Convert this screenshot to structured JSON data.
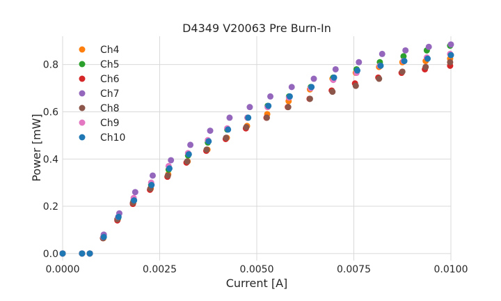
{
  "chart_data": {
    "type": "scatter",
    "title": "D4349 V20063 Pre Burn-In",
    "xlabel": "Current [A]",
    "ylabel": "Power [mW]",
    "xlim": [
      0.0,
      0.01
    ],
    "ylim": [
      -0.03,
      0.92
    ],
    "x_ticks": [
      0.0,
      0.0025,
      0.005,
      0.0075,
      0.01
    ],
    "x_tick_labels": [
      "0.0000",
      "0.0025",
      "0.0050",
      "0.0075",
      "0.0100"
    ],
    "y_ticks": [
      0.0,
      0.2,
      0.4,
      0.6,
      0.8
    ],
    "y_tick_labels": [
      "0.0",
      "0.2",
      "0.4",
      "0.6",
      "0.8"
    ],
    "grid": true,
    "legend_position": "top-left",
    "series": [
      {
        "name": "Ch4",
        "color": "#ff7f0e",
        "x": [
          0.0,
          0.0005,
          0.0007,
          0.00105,
          0.00142,
          0.00182,
          0.00227,
          0.00272,
          0.00322,
          0.00373,
          0.00423,
          0.00475,
          0.00527,
          0.00582,
          0.00637,
          0.00695,
          0.00755,
          0.00815,
          0.00875,
          0.00935,
          0.00998
        ],
        "y": [
          0.0,
          0.0,
          0.0,
          0.065,
          0.145,
          0.215,
          0.275,
          0.335,
          0.39,
          0.44,
          0.49,
          0.54,
          0.59,
          0.645,
          0.695,
          0.74,
          0.765,
          0.79,
          0.81,
          0.815,
          0.825
        ]
      },
      {
        "name": "Ch5",
        "color": "#2ca02c",
        "x": [
          0.0,
          0.0005,
          0.0007,
          0.00105,
          0.00143,
          0.00183,
          0.00228,
          0.00273,
          0.00323,
          0.00374,
          0.00424,
          0.00476,
          0.00528,
          0.00583,
          0.00639,
          0.00697,
          0.00757,
          0.00817,
          0.00878,
          0.00938,
          0.00998
        ],
        "y": [
          0.0,
          0.0,
          0.0,
          0.07,
          0.15,
          0.225,
          0.29,
          0.355,
          0.415,
          0.47,
          0.525,
          0.575,
          0.625,
          0.665,
          0.705,
          0.745,
          0.78,
          0.81,
          0.835,
          0.86,
          0.88
        ]
      },
      {
        "name": "Ch6",
        "color": "#d62728",
        "x": [
          0.0,
          0.0005,
          0.0007,
          0.00104,
          0.00141,
          0.00181,
          0.00225,
          0.0027,
          0.00319,
          0.0037,
          0.0042,
          0.00472,
          0.00525,
          0.0058,
          0.00636,
          0.00693,
          0.00753,
          0.00813,
          0.00873,
          0.00933,
          0.00998
        ],
        "y": [
          0.0,
          0.0,
          0.0,
          0.065,
          0.14,
          0.21,
          0.27,
          0.325,
          0.385,
          0.435,
          0.485,
          0.53,
          0.575,
          0.62,
          0.655,
          0.69,
          0.72,
          0.745,
          0.765,
          0.78,
          0.795
        ]
      },
      {
        "name": "Ch7",
        "color": "#9467bd",
        "x": [
          0.0,
          0.0005,
          0.0007,
          0.00106,
          0.00146,
          0.00187,
          0.00232,
          0.00279,
          0.00329,
          0.0038,
          0.0043,
          0.00482,
          0.00535,
          0.0059,
          0.00647,
          0.00703,
          0.00763,
          0.00823,
          0.00883,
          0.00943,
          0.01
        ],
        "y": [
          0.0,
          0.0,
          0.0,
          0.08,
          0.17,
          0.26,
          0.33,
          0.395,
          0.46,
          0.52,
          0.575,
          0.62,
          0.665,
          0.705,
          0.74,
          0.78,
          0.81,
          0.845,
          0.86,
          0.875,
          0.885
        ]
      },
      {
        "name": "Ch8",
        "color": "#8c564b",
        "x": [
          0.0,
          0.0005,
          0.0007,
          0.00104,
          0.00141,
          0.00181,
          0.00226,
          0.00271,
          0.00321,
          0.00371,
          0.00421,
          0.00473,
          0.00526,
          0.00581,
          0.00637,
          0.00695,
          0.00755,
          0.00815,
          0.00875,
          0.00935,
          0.00998
        ],
        "y": [
          0.0,
          0.0,
          0.0,
          0.065,
          0.145,
          0.215,
          0.275,
          0.33,
          0.39,
          0.44,
          0.49,
          0.535,
          0.575,
          0.62,
          0.655,
          0.685,
          0.71,
          0.74,
          0.77,
          0.79,
          0.81
        ]
      },
      {
        "name": "Ch9",
        "color": "#e377c2",
        "x": [
          0.0,
          0.0005,
          0.0007,
          0.00105,
          0.00143,
          0.00183,
          0.00228,
          0.00273,
          0.00323,
          0.00374,
          0.00424,
          0.00476,
          0.00528,
          0.00583,
          0.00639,
          0.00697,
          0.00757,
          0.00817,
          0.00878,
          0.00938,
          0.00998
        ],
        "y": [
          0.0,
          0.0,
          0.0,
          0.07,
          0.155,
          0.235,
          0.3,
          0.37,
          0.425,
          0.48,
          0.53,
          0.575,
          0.62,
          0.66,
          0.7,
          0.735,
          0.765,
          0.795,
          0.815,
          0.83,
          0.845
        ]
      },
      {
        "name": "Ch10",
        "color": "#1f77b4",
        "x": [
          0.0,
          0.0005,
          0.0007,
          0.00106,
          0.00144,
          0.00184,
          0.00229,
          0.00275,
          0.00325,
          0.00376,
          0.00426,
          0.00478,
          0.0053,
          0.00585,
          0.00641,
          0.00699,
          0.00759,
          0.00819,
          0.0088,
          0.0094,
          0.01
        ],
        "y": [
          0.0,
          0.0,
          0.0,
          0.07,
          0.155,
          0.225,
          0.29,
          0.36,
          0.42,
          0.475,
          0.525,
          0.575,
          0.625,
          0.665,
          0.705,
          0.745,
          0.775,
          0.795,
          0.815,
          0.825,
          0.84
        ]
      }
    ]
  }
}
